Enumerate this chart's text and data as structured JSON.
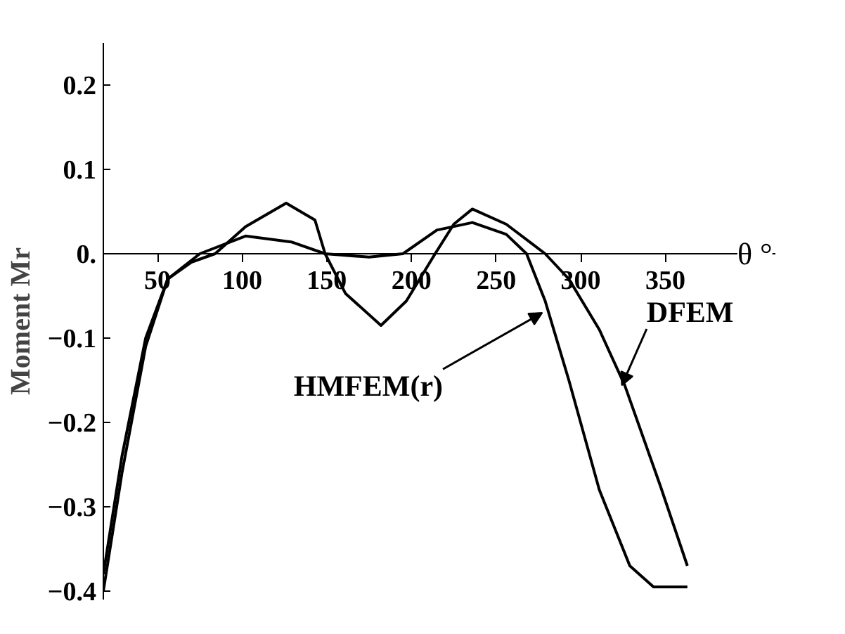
{
  "chart_data": {
    "type": "line",
    "ylabel": "Moment Mr",
    "xlabel": "θ °",
    "xlim": [
      18,
      415
    ],
    "ylim": [
      -0.41,
      0.25
    ],
    "xticks": [
      50,
      100,
      150,
      200,
      250,
      300,
      350
    ],
    "yticks": [
      -0.4,
      -0.3,
      -0.2,
      -0.1,
      {
        "value": 0,
        "label": "0."
      },
      0.1,
      0.2
    ],
    "grid": false,
    "marker": "none",
    "line_style": "solid",
    "series": [
      {
        "color": "#000000",
        "x": [
          18,
          29,
          43,
          56,
          75,
          102,
          129,
          149,
          175,
          195,
          215,
          236,
          256,
          268,
          279,
          293,
          311,
          329,
          343,
          363
        ],
        "values": [
          -0.4,
          -0.26,
          -0.11,
          -0.03,
          0.0,
          0.021,
          0.014,
          0.0,
          -0.004,
          0.0,
          0.028,
          0.037,
          0.023,
          0.0,
          -0.056,
          -0.15,
          -0.28,
          -0.37,
          -0.395,
          -0.395
        ]
      },
      {
        "color": "#000000",
        "x": [
          18,
          29,
          43,
          56,
          70,
          84,
          102,
          126,
          143,
          149,
          161,
          182,
          197,
          214,
          225,
          236,
          256,
          279,
          293,
          311,
          326,
          347,
          363
        ],
        "values": [
          -0.38,
          -0.24,
          -0.1,
          -0.03,
          -0.01,
          0.0,
          0.032,
          0.06,
          0.04,
          0.0,
          -0.047,
          -0.085,
          -0.056,
          0.0,
          0.035,
          0.053,
          0.035,
          0.0,
          -0.03,
          -0.09,
          -0.156,
          -0.275,
          -0.37
        ]
      }
    ],
    "annotations": [
      {
        "text": "HMFEM(r)",
        "x": 279,
        "y": -0.07
      },
      {
        "text": "DFEM",
        "x": 326,
        "y": -0.156
      }
    ]
  }
}
